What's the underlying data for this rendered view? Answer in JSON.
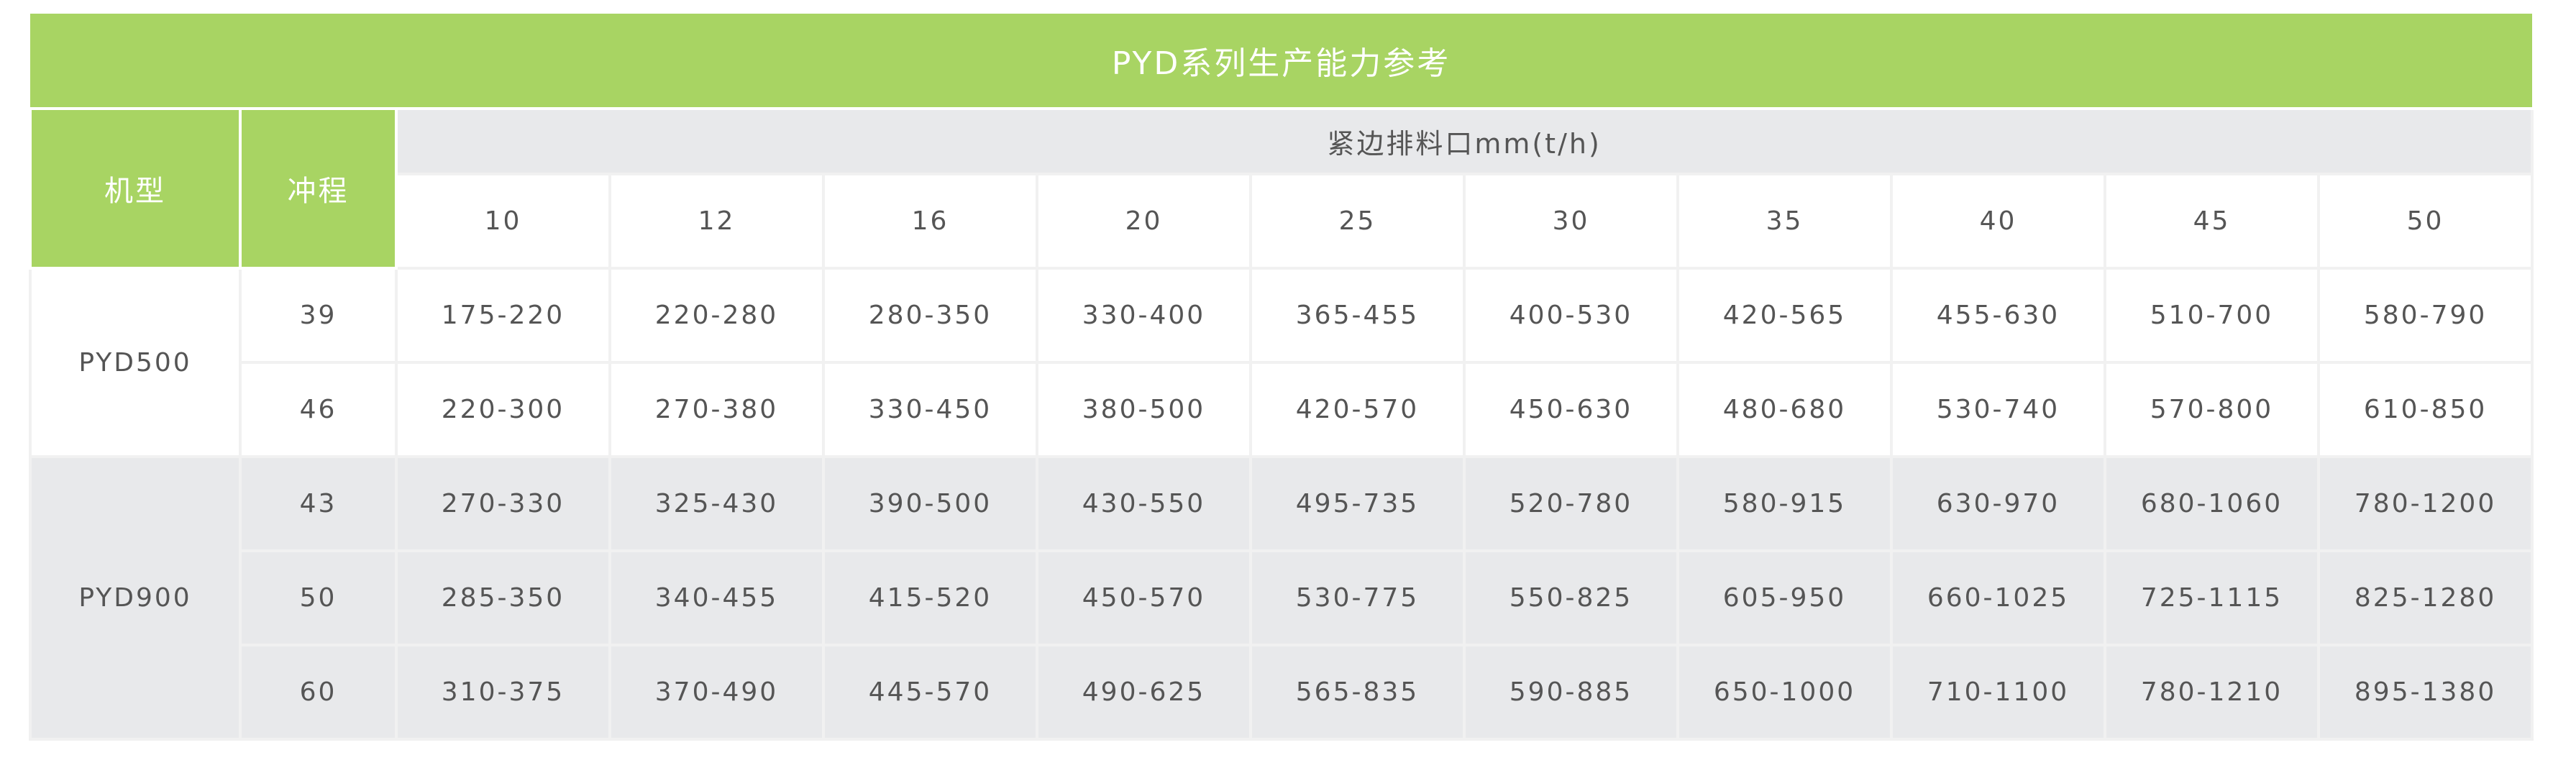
{
  "title": "PYD系列生产能力参考",
  "headers": {
    "model": "机型",
    "stroke": "冲程",
    "group": "紧边排料口mm(t/h)",
    "sizes": [
      "10",
      "12",
      "16",
      "20",
      "25",
      "30",
      "35",
      "40",
      "45",
      "50"
    ]
  },
  "colors": {
    "header_green": "#a8d463",
    "band_gray": "#e8e9eb",
    "text": "#555555"
  },
  "models": [
    {
      "name": "PYD500",
      "rows": [
        {
          "stroke": "39",
          "values": [
            "175-220",
            "220-280",
            "280-350",
            "330-400",
            "365-455",
            "400-530",
            "420-565",
            "455-630",
            "510-700",
            "580-790"
          ]
        },
        {
          "stroke": "46",
          "values": [
            "220-300",
            "270-380",
            "330-450",
            "380-500",
            "420-570",
            "450-630",
            "480-680",
            "530-740",
            "570-800",
            "610-850"
          ]
        }
      ]
    },
    {
      "name": "PYD900",
      "rows": [
        {
          "stroke": "43",
          "values": [
            "270-330",
            "325-430",
            "390-500",
            "430-550",
            "495-735",
            "520-780",
            "580-915",
            "630-970",
            "680-1060",
            "780-1200"
          ]
        },
        {
          "stroke": "50",
          "values": [
            "285-350",
            "340-455",
            "415-520",
            "450-570",
            "530-775",
            "550-825",
            "605-950",
            "660-1025",
            "725-1115",
            "825-1280"
          ]
        },
        {
          "stroke": "60",
          "values": [
            "310-375",
            "370-490",
            "445-570",
            "490-625",
            "565-835",
            "590-885",
            "650-1000",
            "710-1100",
            "780-1210",
            "895-1380"
          ]
        }
      ]
    }
  ]
}
